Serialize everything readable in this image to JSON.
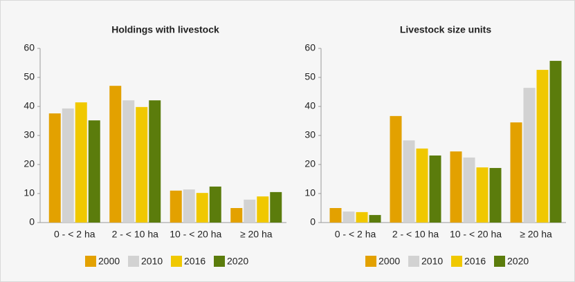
{
  "chart_data": [
    {
      "type": "bar",
      "title": "Holdings with livestock",
      "categories": [
        "0 - < 2 ha",
        "2 - < 10 ha",
        "10 - < 20 ha",
        "≥ 20 ha"
      ],
      "series": [
        {
          "name": "2000",
          "color": "#e3a100",
          "values": [
            37.6,
            47.1,
            11.0,
            5.0
          ]
        },
        {
          "name": "2010",
          "color": "#d2d2d2",
          "values": [
            39.3,
            42.1,
            11.4,
            7.9
          ]
        },
        {
          "name": "2016",
          "color": "#f0c800",
          "values": [
            41.4,
            39.8,
            10.2,
            9.0
          ]
        },
        {
          "name": "2020",
          "color": "#5b7c0c",
          "values": [
            35.2,
            42.1,
            12.4,
            10.5
          ]
        }
      ],
      "ylim": [
        0,
        60
      ],
      "yticks": [
        0,
        10,
        20,
        30,
        40,
        50,
        60
      ],
      "grid": false,
      "legend": "bottom"
    },
    {
      "type": "bar",
      "title": "Livestock size units",
      "categories": [
        "0 - < 2 ha",
        "2 - < 10 ha",
        "10 - < 20 ha",
        "≥ 20 ha"
      ],
      "series": [
        {
          "name": "2000",
          "color": "#e3a100",
          "values": [
            5.0,
            36.7,
            24.5,
            34.5
          ]
        },
        {
          "name": "2010",
          "color": "#d2d2d2",
          "values": [
            3.8,
            28.3,
            22.4,
            46.4
          ]
        },
        {
          "name": "2016",
          "color": "#f0c800",
          "values": [
            3.6,
            25.5,
            19.0,
            52.6
          ]
        },
        {
          "name": "2020",
          "color": "#5b7c0c",
          "values": [
            2.6,
            23.1,
            18.8,
            55.7
          ]
        }
      ],
      "ylim": [
        0,
        60
      ],
      "yticks": [
        0,
        10,
        20,
        30,
        40,
        50,
        60
      ],
      "grid": false,
      "legend": "bottom"
    }
  ]
}
